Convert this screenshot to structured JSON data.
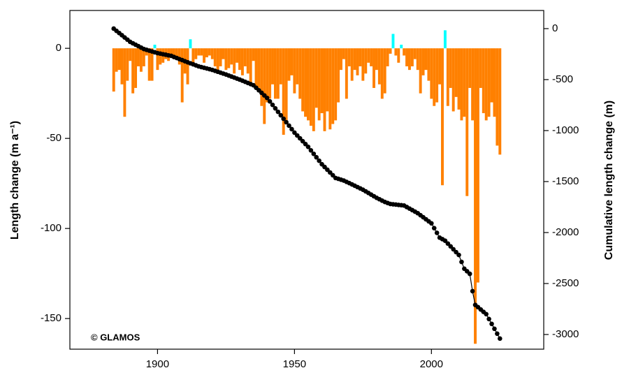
{
  "chart_data": {
    "type": "combo",
    "ylabel": "Length change  (m a⁻¹)",
    "y2label": "Cumulative length change  (m)",
    "annotation": "© GLAMOS",
    "xlim": [
      1868,
      2041
    ],
    "xticks": [
      1900,
      1950,
      2000
    ],
    "ylim": [
      -167,
      21
    ],
    "yticks": [
      -150,
      -100,
      -50,
      0
    ],
    "y2lim": [
      -3144,
      178
    ],
    "y2ticks": [
      -3000,
      -2500,
      -2000,
      -1500,
      -1000,
      -500,
      0
    ],
    "x": [
      1884,
      1885,
      1886,
      1887,
      1888,
      1889,
      1890,
      1891,
      1892,
      1893,
      1894,
      1895,
      1896,
      1897,
      1898,
      1899,
      1900,
      1901,
      1902,
      1903,
      1904,
      1905,
      1906,
      1907,
      1908,
      1909,
      1910,
      1911,
      1912,
      1913,
      1914,
      1915,
      1916,
      1917,
      1918,
      1919,
      1920,
      1921,
      1922,
      1923,
      1924,
      1925,
      1926,
      1927,
      1928,
      1929,
      1930,
      1931,
      1932,
      1933,
      1934,
      1935,
      1936,
      1937,
      1938,
      1939,
      1940,
      1941,
      1942,
      1943,
      1944,
      1945,
      1946,
      1947,
      1948,
      1949,
      1950,
      1951,
      1952,
      1953,
      1954,
      1955,
      1956,
      1957,
      1958,
      1959,
      1960,
      1961,
      1962,
      1963,
      1964,
      1965,
      1966,
      1967,
      1968,
      1969,
      1970,
      1971,
      1972,
      1973,
      1974,
      1975,
      1976,
      1977,
      1978,
      1979,
      1980,
      1981,
      1982,
      1983,
      1984,
      1985,
      1986,
      1987,
      1988,
      1989,
      1990,
      1991,
      1992,
      1993,
      1994,
      1995,
      1996,
      1997,
      1998,
      1999,
      2000,
      2001,
      2002,
      2003,
      2004,
      2005,
      2006,
      2007,
      2008,
      2009,
      2010,
      2011,
      2012,
      2013,
      2014,
      2015,
      2016,
      2017,
      2018,
      2019,
      2020,
      2021,
      2022,
      2023,
      2024,
      2025
    ],
    "series": [
      {
        "type": "bar",
        "axis": "y",
        "color_negative": "#ff8000",
        "color_positive": "#00ffff",
        "values": [
          -24,
          -13,
          -12,
          -20,
          -38,
          -18,
          -7,
          -25,
          -22,
          -10,
          -13,
          -10,
          -4,
          -18,
          -18,
          2,
          -12,
          -9,
          -8,
          -6,
          -7,
          -5,
          -6,
          -5,
          -9,
          -30,
          -14,
          -20,
          5,
          -10,
          -6,
          -4,
          -4,
          -8,
          -5,
          -4,
          -6,
          -10,
          -14,
          -10,
          -6,
          -12,
          -11,
          -9,
          -14,
          -8,
          -12,
          -15,
          -10,
          -14,
          -20,
          -7,
          -22,
          -22,
          -32,
          -42,
          -30,
          -28,
          -20,
          -28,
          -28,
          -20,
          -48,
          -42,
          -18,
          -15,
          -25,
          -20,
          -28,
          -35,
          -38,
          -40,
          -43,
          -46,
          -33,
          -40,
          -36,
          -46,
          -35,
          -45,
          -42,
          -40,
          -30,
          -12,
          -6,
          -28,
          -10,
          -18,
          -12,
          -15,
          -10,
          -18,
          -14,
          -8,
          -10,
          -22,
          -12,
          -20,
          -28,
          -25,
          -10,
          -3,
          8,
          -4,
          -8,
          2,
          -4,
          -10,
          -12,
          -10,
          -6,
          -12,
          -25,
          -15,
          -12,
          -18,
          -28,
          -32,
          -30,
          -20,
          -76,
          10,
          -32,
          -22,
          -35,
          -27,
          -34,
          -40,
          -38,
          -82,
          -22,
          -40,
          -164,
          -130,
          -22,
          -36,
          -40,
          -38,
          -30,
          -38,
          -54,
          -59
        ]
      },
      {
        "type": "line",
        "axis": "y2",
        "color": "#000000",
        "values": [
          0,
          -22,
          -43,
          -65,
          -87,
          -108,
          -130,
          -144,
          -158,
          -172,
          -186,
          -200,
          -208,
          -216,
          -224,
          -232,
          -240,
          -245,
          -251,
          -256,
          -262,
          -267,
          -278,
          -288,
          -299,
          -309,
          -320,
          -330,
          -340,
          -350,
          -360,
          -370,
          -377,
          -384,
          -391,
          -398,
          -405,
          -414,
          -423,
          -432,
          -441,
          -450,
          -460,
          -470,
          -480,
          -490,
          -500,
          -511,
          -522,
          -533,
          -544,
          -555,
          -580,
          -605,
          -630,
          -655,
          -680,
          -714,
          -748,
          -782,
          -816,
          -850,
          -884,
          -918,
          -952,
          -986,
          -1020,
          -1048,
          -1076,
          -1104,
          -1132,
          -1160,
          -1194,
          -1228,
          -1262,
          -1296,
          -1330,
          -1357,
          -1384,
          -1411,
          -1438,
          -1465,
          -1473,
          -1482,
          -1490,
          -1503,
          -1515,
          -1528,
          -1541,
          -1554,
          -1567,
          -1580,
          -1596,
          -1612,
          -1628,
          -1644,
          -1660,
          -1673,
          -1687,
          -1700,
          -1710,
          -1720,
          -1723,
          -1726,
          -1729,
          -1732,
          -1735,
          -1750,
          -1765,
          -1780,
          -1795,
          -1810,
          -1830,
          -1850,
          -1870,
          -1890,
          -1910,
          -1957,
          -2003,
          -2050,
          -2065,
          -2080,
          -2108,
          -2136,
          -2164,
          -2192,
          -2220,
          -2288,
          -2355,
          -2380,
          -2405,
          -2575,
          -2710,
          -2732,
          -2755,
          -2778,
          -2800,
          -2848,
          -2896,
          -2944,
          -2992,
          -3040
        ]
      }
    ]
  }
}
